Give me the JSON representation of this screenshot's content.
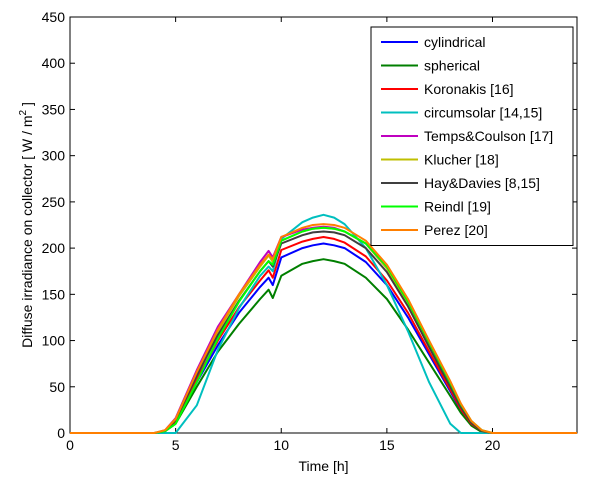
{
  "chart_data": {
    "type": "line",
    "xlabel": "Time [h]",
    "ylabel_main": "Diffuse irradiance on collector [ W / m",
    "ylabel_sup": "2",
    "ylabel_end": " ]",
    "xlim": [
      0,
      24
    ],
    "ylim": [
      0,
      450
    ],
    "xticks": [
      0,
      5,
      10,
      15,
      20
    ],
    "yticks": [
      0,
      50,
      100,
      150,
      200,
      250,
      300,
      350,
      400,
      450
    ],
    "grid": false,
    "legend_position": "top-right",
    "x": [
      0,
      4,
      4.5,
      5,
      6,
      7,
      8,
      9,
      9.4,
      9.6,
      10,
      11,
      11.5,
      12,
      12.5,
      13,
      14,
      15,
      16,
      17,
      18,
      18.5,
      19,
      19.5,
      20,
      24
    ],
    "series": [
      {
        "name": "cylindrical",
        "color": "#0000ff",
        "values": [
          0,
          0,
          2,
          12,
          55,
          95,
          130,
          158,
          168,
          160,
          190,
          200,
          203,
          205,
          203,
          200,
          185,
          160,
          125,
          85,
          45,
          25,
          10,
          2,
          0,
          0
        ]
      },
      {
        "name": "spherical",
        "color": "#007f00",
        "values": [
          0,
          0,
          2,
          10,
          50,
          88,
          118,
          145,
          155,
          146,
          170,
          183,
          186,
          188,
          186,
          183,
          168,
          145,
          112,
          76,
          40,
          22,
          8,
          1,
          0,
          0
        ]
      },
      {
        "name": "Koronakis [16]",
        "color": "#ff0000",
        "values": [
          0,
          0,
          2,
          13,
          58,
          100,
          136,
          165,
          176,
          168,
          198,
          207,
          210,
          212,
          210,
          206,
          191,
          165,
          130,
          88,
          47,
          26,
          10,
          2,
          0,
          0
        ]
      },
      {
        "name": "circumsolar [14,15]",
        "color": "#00bfbf",
        "values": [
          0,
          0,
          0,
          0,
          30,
          90,
          135,
          170,
          180,
          175,
          210,
          228,
          233,
          236,
          233,
          226,
          200,
          160,
          110,
          55,
          10,
          0,
          0,
          0,
          0,
          0
        ]
      },
      {
        "name": "Temps&Coulson [17]",
        "color": "#bf00bf",
        "values": [
          0,
          0,
          3,
          16,
          68,
          115,
          150,
          185,
          197,
          190,
          212,
          220,
          222,
          223,
          222,
          218,
          205,
          178,
          140,
          95,
          52,
          30,
          12,
          2,
          0,
          0
        ]
      },
      {
        "name": "Klucher [18]",
        "color": "#bfbf00",
        "values": [
          0,
          0,
          3,
          15,
          65,
          110,
          148,
          180,
          192,
          185,
          208,
          218,
          221,
          222,
          221,
          218,
          205,
          178,
          140,
          96,
          52,
          30,
          12,
          2,
          0,
          0
        ]
      },
      {
        "name": "Hay&Davies [8,15]",
        "color": "#3f3f3f",
        "values": [
          0,
          0,
          2,
          14,
          62,
          106,
          143,
          175,
          186,
          180,
          205,
          214,
          217,
          218,
          217,
          214,
          200,
          174,
          137,
          93,
          50,
          28,
          11,
          2,
          0,
          0
        ]
      },
      {
        "name": "Reindl [19]",
        "color": "#00ff00",
        "values": [
          0,
          0,
          2,
          10,
          55,
          102,
          142,
          175,
          186,
          182,
          208,
          218,
          221,
          222,
          221,
          218,
          205,
          180,
          142,
          98,
          54,
          31,
          13,
          3,
          0,
          0
        ]
      },
      {
        "name": "Perez [20]",
        "color": "#ff7f00",
        "values": [
          0,
          0,
          3,
          15,
          66,
          112,
          150,
          182,
          193,
          188,
          212,
          222,
          225,
          226,
          225,
          222,
          208,
          182,
          145,
          100,
          56,
          32,
          13,
          3,
          0,
          0
        ]
      }
    ]
  }
}
